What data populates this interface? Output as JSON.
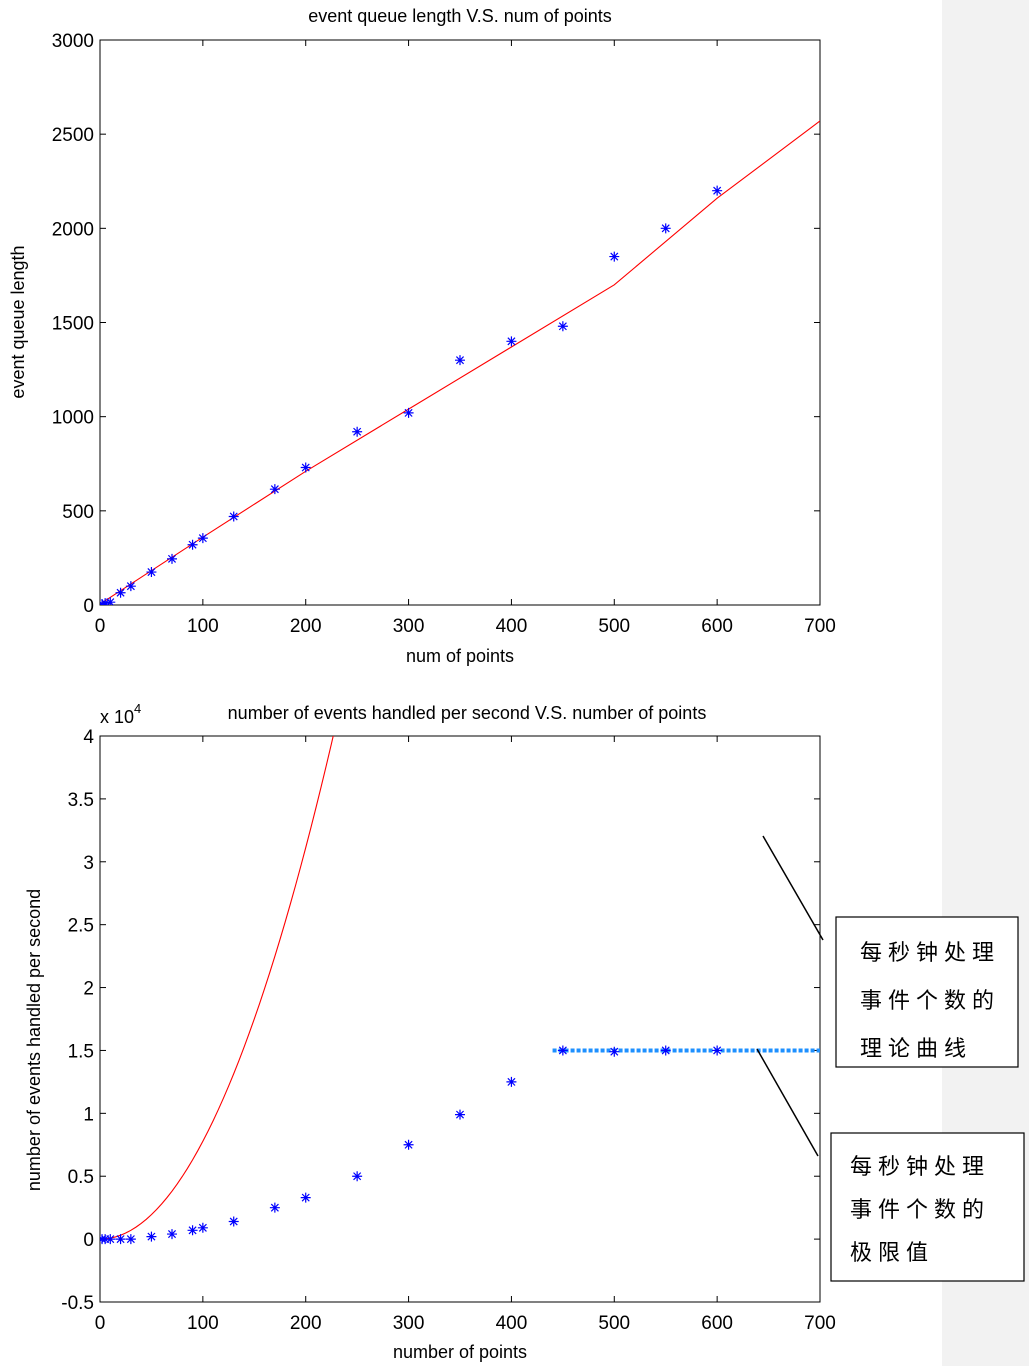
{
  "chart_data": [
    {
      "type": "scatter",
      "title": "event queue length V.S. num of points",
      "xlabel": "num of points",
      "ylabel": "event queue length",
      "xlim": [
        0,
        700
      ],
      "ylim": [
        0,
        3000
      ],
      "xticks": [
        0,
        100,
        200,
        300,
        400,
        500,
        600,
        700
      ],
      "yticks": [
        0,
        500,
        1000,
        1500,
        2000,
        2500,
        3000
      ],
      "grid": false,
      "series": [
        {
          "kind": "markers",
          "marker": "asterisk",
          "color": "#0000ff",
          "x": [
            2,
            5,
            10,
            20,
            30,
            50,
            70,
            90,
            100,
            130,
            170,
            200,
            250,
            300,
            350,
            400,
            450,
            500,
            550,
            600
          ],
          "y": [
            5,
            10,
            15,
            65,
            100,
            175,
            245,
            320,
            355,
            470,
            615,
            730,
            920,
            1020,
            1300,
            1400,
            1480,
            1850,
            2000,
            2200
          ]
        },
        {
          "kind": "line",
          "color": "#ff0000",
          "x": [
            0,
            100,
            200,
            300,
            400,
            500,
            600,
            700
          ],
          "y": [
            5,
            360,
            710,
            1040,
            1370,
            1700,
            2160,
            2570
          ]
        }
      ]
    },
    {
      "type": "scatter",
      "title": "number of events handled per second V.S. number of points",
      "xlabel": "number of points",
      "ylabel": "number of events handled per second",
      "y_scale_label": "x 10",
      "y_scale_exponent": "4",
      "xlim": [
        0,
        700
      ],
      "ylim": [
        -0.5,
        4
      ],
      "xticks": [
        0,
        100,
        200,
        300,
        400,
        500,
        600,
        700
      ],
      "yticks": [
        "-0.5",
        "0",
        "0.5",
        "1",
        "1.5",
        "2",
        "2.5",
        "3",
        "3.5",
        "4"
      ],
      "grid": false,
      "series": [
        {
          "kind": "markers",
          "marker": "asterisk",
          "color": "#0000ff",
          "x": [
            2,
            5,
            10,
            20,
            30,
            50,
            70,
            90,
            100,
            130,
            170,
            200,
            250,
            300,
            350,
            400,
            450,
            500,
            550,
            600
          ],
          "y": [
            0.0,
            0.0,
            0.0,
            0.0,
            0.0,
            0.02,
            0.04,
            0.07,
            0.09,
            0.14,
            0.25,
            0.33,
            0.5,
            0.75,
            0.99,
            1.25,
            1.5,
            1.49,
            1.5,
            1.5
          ]
        },
        {
          "kind": "curve",
          "color": "#ff0000",
          "coefficient": 7.78e-05,
          "x_range": [
            0,
            700
          ]
        },
        {
          "kind": "dotted-line",
          "color": "#1e90ff",
          "x": [
            440,
            700
          ],
          "y": [
            1.5,
            1.5
          ]
        }
      ],
      "annotations": [
        {
          "lines": [
            "每秒钟处理",
            "事件个数的",
            "理论曲线"
          ],
          "pointer_x": 640
        },
        {
          "lines": [
            "每秒钟处理",
            "事件个数的",
            "极限值"
          ],
          "pointer_x": 640
        }
      ]
    }
  ]
}
